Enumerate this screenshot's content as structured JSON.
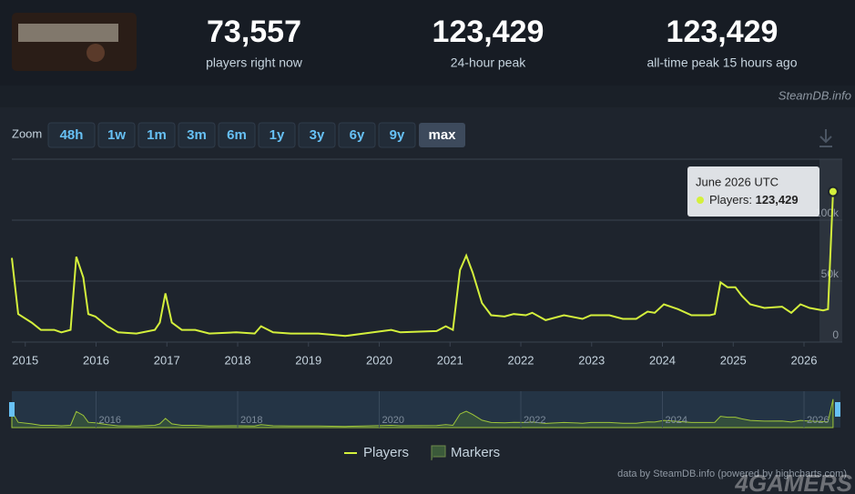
{
  "header": {
    "stats": [
      {
        "value": "73,557",
        "label": "players right now"
      },
      {
        "value": "123,429",
        "label": "24-hour peak"
      },
      {
        "value": "123,429",
        "label": "all-time peak 15 hours ago"
      }
    ],
    "source": "SteamDB.info"
  },
  "zoom": {
    "label": "Zoom",
    "buttons": [
      "48h",
      "1w",
      "1m",
      "3m",
      "6m",
      "1y",
      "3y",
      "6y",
      "9y",
      "max"
    ],
    "active": "max"
  },
  "chart_data": {
    "type": "line",
    "x": [
      2014.81,
      2014.9,
      2015.09,
      2015.22,
      2015.41,
      2015.51,
      2015.64,
      2015.72,
      2015.82,
      2015.89,
      2015.99,
      2016.16,
      2016.31,
      2016.57,
      2016.83,
      2016.9,
      2016.98,
      2017.07,
      2017.21,
      2017.4,
      2017.6,
      2017.98,
      2018.24,
      2018.33,
      2018.5,
      2018.75,
      2019.14,
      2019.52,
      2019.78,
      2020.17,
      2020.3,
      2020.81,
      2020.94,
      2021.04,
      2021.14,
      2021.23,
      2021.32,
      2021.45,
      2021.58,
      2021.77,
      2021.9,
      2022.07,
      2022.16,
      2022.35,
      2022.61,
      2022.87,
      2022.99,
      2023.25,
      2023.44,
      2023.63,
      2023.79,
      2023.89,
      2024.02,
      2024.22,
      2024.41,
      2024.67,
      2024.74,
      2024.82,
      2024.92,
      2025.03,
      2025.12,
      2025.24,
      2025.44,
      2025.69,
      2025.82,
      2025.95,
      2026.08,
      2026.27,
      2026.34,
      2026.41
    ],
    "series": [
      {
        "name": "Players",
        "color": "#d4f03c",
        "values": [
          69000,
          23000,
          16000,
          10000,
          10000,
          8000,
          10000,
          70000,
          53000,
          23000,
          21000,
          13000,
          8000,
          7000,
          10000,
          16000,
          40000,
          16000,
          10000,
          10000,
          7000,
          8000,
          7000,
          13000,
          8000,
          7000,
          7000,
          5000,
          7000,
          10000,
          8000,
          9000,
          13000,
          10000,
          59000,
          71000,
          57000,
          32000,
          22000,
          21000,
          23000,
          22000,
          24000,
          18000,
          22000,
          19000,
          22000,
          22000,
          19000,
          19000,
          25000,
          24000,
          31000,
          27000,
          22000,
          22000,
          23000,
          49000,
          45000,
          45000,
          38000,
          31000,
          28000,
          29000,
          24000,
          31000,
          28000,
          26000,
          27000,
          123429
        ]
      }
    ],
    "xlim": [
      2014.81,
      2026.45
    ],
    "xticks": [
      2015,
      2016,
      2017,
      2018,
      2019,
      2020,
      2021,
      2022,
      2023,
      2024,
      2025,
      2026
    ],
    "ylim": [
      0,
      150000
    ],
    "yticks": [
      0,
      {
        "value": 50000,
        "label": "50k"
      },
      {
        "value": 100000,
        "label": "100k"
      }
    ],
    "grid": true,
    "navigator_ticks": [
      2016,
      2018,
      2020,
      2022,
      2024,
      2026
    ],
    "markers_legend": "Markers",
    "tooltip": {
      "title": "June 2026 UTC",
      "label": "Players:",
      "value": "123,429"
    },
    "credits": "data by SteamDB.info (powered by highcharts.com)",
    "watermark": "4GAMERS"
  }
}
